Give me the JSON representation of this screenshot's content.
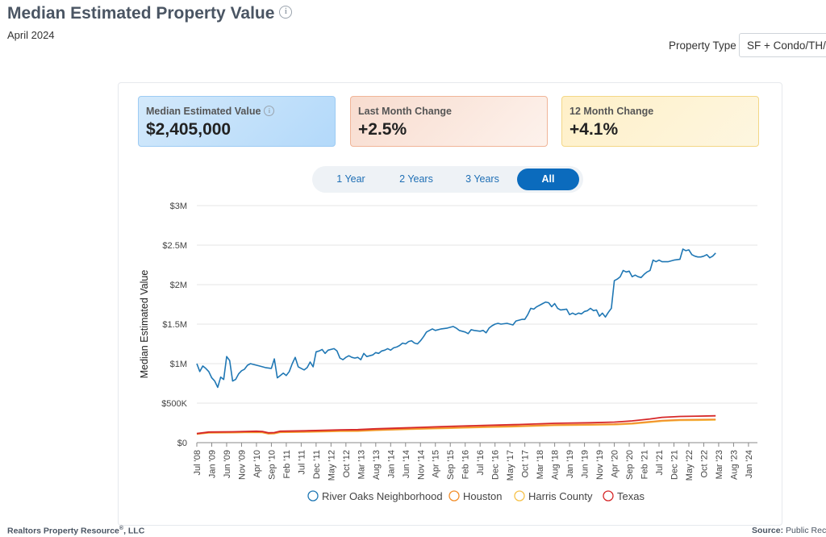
{
  "header": {
    "title": "Median Estimated Property Value",
    "date": "April 2024",
    "property_type_label": "Property Type",
    "property_type_value": "SF + Condo/TH/All"
  },
  "cards": [
    {
      "label": "Median Estimated Value",
      "value": "$2,405,000"
    },
    {
      "label": "Last Month Change",
      "value": "+2.5%"
    },
    {
      "label": "12 Month Change",
      "value": "+4.1%"
    }
  ],
  "range_buttons": [
    {
      "label": "1 Year",
      "active": false
    },
    {
      "label": "2 Years",
      "active": false
    },
    {
      "label": "3 Years",
      "active": false
    },
    {
      "label": "All",
      "active": true
    }
  ],
  "footer": {
    "left": "Realtors Property Resource",
    "left_suffix": ", LLC",
    "reg": "®",
    "right_label": "Source:",
    "right_value": "Public Records"
  },
  "colors": {
    "river_oaks": "#1f77b4",
    "houston": "#f28e2b",
    "harris": "#f6c24b",
    "texas": "#d62728",
    "accent": "#0b6bbd"
  },
  "chart_data": {
    "type": "line",
    "title": "",
    "xlabel": "",
    "ylabel": "Median Estimated Value",
    "ylim": [
      0,
      3000000
    ],
    "y_ticks": [
      {
        "value": 0,
        "label": "$0"
      },
      {
        "value": 500000,
        "label": "$500K"
      },
      {
        "value": 1000000,
        "label": "$1M"
      },
      {
        "value": 1500000,
        "label": "$1.5M"
      },
      {
        "value": 2000000,
        "label": "$2M"
      },
      {
        "value": 2500000,
        "label": "$2.5M"
      },
      {
        "value": 3000000,
        "label": "$3M"
      }
    ],
    "x_start": "2008-07",
    "x_end": "2024-04",
    "x_ticks": [
      "Jul '08",
      "Jan '09",
      "Jun '09",
      "Nov '09",
      "Apr '10",
      "Sep '10",
      "Feb '11",
      "Jul '11",
      "Dec '11",
      "May '12",
      "Oct '12",
      "Mar '13",
      "Aug '13",
      "Jan '14",
      "Jun '14",
      "Nov '14",
      "Apr '15",
      "Sep '15",
      "Feb '16",
      "Jul '16",
      "Dec '16",
      "May '17",
      "Oct '17",
      "Mar '18",
      "Aug '18",
      "Jan '19",
      "Jun '19",
      "Nov '19",
      "Apr '20",
      "Sep '20",
      "Feb '21",
      "Jul '21",
      "Dec '21",
      "May '22",
      "Oct '22",
      "Mar '23",
      "Aug '23",
      "Jan '24"
    ],
    "series": [
      {
        "name": "River Oaks Neighborhood",
        "color": "#1f77b4",
        "points": [
          [
            0,
            1000000
          ],
          [
            1,
            900000
          ],
          [
            2,
            970000
          ],
          [
            3,
            940000
          ],
          [
            4,
            900000
          ],
          [
            5,
            820000
          ],
          [
            6,
            780000
          ],
          [
            7,
            700000
          ],
          [
            8,
            830000
          ],
          [
            9,
            800000
          ],
          [
            10,
            1090000
          ],
          [
            11,
            1040000
          ],
          [
            12,
            780000
          ],
          [
            13,
            800000
          ],
          [
            14,
            870000
          ],
          [
            15,
            910000
          ],
          [
            16,
            930000
          ],
          [
            17,
            980000
          ],
          [
            18,
            1000000
          ],
          [
            19,
            990000
          ],
          [
            21,
            970000
          ],
          [
            23,
            950000
          ],
          [
            25,
            940000
          ],
          [
            26,
            1060000
          ],
          [
            27,
            820000
          ],
          [
            28,
            850000
          ],
          [
            29,
            880000
          ],
          [
            30,
            850000
          ],
          [
            31,
            900000
          ],
          [
            32,
            1000000
          ],
          [
            33,
            1080000
          ],
          [
            34,
            960000
          ],
          [
            35,
            940000
          ],
          [
            36,
            920000
          ],
          [
            37,
            950000
          ],
          [
            38,
            1020000
          ],
          [
            39,
            960000
          ],
          [
            40,
            1150000
          ],
          [
            41,
            1160000
          ],
          [
            42,
            1180000
          ],
          [
            43,
            1130000
          ],
          [
            44,
            1170000
          ],
          [
            46,
            1190000
          ],
          [
            47,
            1160000
          ],
          [
            48,
            1070000
          ],
          [
            49,
            1050000
          ],
          [
            50,
            1080000
          ],
          [
            51,
            1100000
          ],
          [
            52,
            1080000
          ],
          [
            53,
            1070000
          ],
          [
            54,
            1080000
          ],
          [
            55,
            1050000
          ],
          [
            56,
            1130000
          ],
          [
            57,
            1090000
          ],
          [
            58,
            1100000
          ],
          [
            59,
            1110000
          ],
          [
            60,
            1140000
          ],
          [
            61,
            1130000
          ],
          [
            62,
            1160000
          ],
          [
            63,
            1170000
          ],
          [
            64,
            1190000
          ],
          [
            65,
            1170000
          ],
          [
            66,
            1200000
          ],
          [
            67,
            1210000
          ],
          [
            68,
            1230000
          ],
          [
            69,
            1260000
          ],
          [
            70,
            1250000
          ],
          [
            71,
            1280000
          ],
          [
            72,
            1290000
          ],
          [
            73,
            1260000
          ],
          [
            74,
            1250000
          ],
          [
            75,
            1290000
          ],
          [
            76,
            1340000
          ],
          [
            77,
            1400000
          ],
          [
            78,
            1420000
          ],
          [
            79,
            1440000
          ],
          [
            80,
            1420000
          ],
          [
            82,
            1440000
          ],
          [
            84,
            1450000
          ],
          [
            85,
            1460000
          ],
          [
            86,
            1470000
          ],
          [
            87,
            1450000
          ],
          [
            88,
            1420000
          ],
          [
            89,
            1410000
          ],
          [
            90,
            1400000
          ],
          [
            91,
            1380000
          ],
          [
            92,
            1430000
          ],
          [
            93,
            1420000
          ],
          [
            95,
            1410000
          ],
          [
            96,
            1420000
          ],
          [
            97,
            1390000
          ],
          [
            98,
            1450000
          ],
          [
            99,
            1480000
          ],
          [
            100,
            1500000
          ],
          [
            101,
            1510000
          ],
          [
            102,
            1500000
          ],
          [
            104,
            1510000
          ],
          [
            106,
            1490000
          ],
          [
            107,
            1540000
          ],
          [
            108,
            1550000
          ],
          [
            109,
            1560000
          ],
          [
            110,
            1560000
          ],
          [
            111,
            1620000
          ],
          [
            112,
            1700000
          ],
          [
            113,
            1690000
          ],
          [
            114,
            1720000
          ],
          [
            115,
            1740000
          ],
          [
            116,
            1760000
          ],
          [
            117,
            1780000
          ],
          [
            118,
            1770000
          ],
          [
            119,
            1720000
          ],
          [
            120,
            1760000
          ],
          [
            121,
            1700000
          ],
          [
            122,
            1680000
          ],
          [
            124,
            1690000
          ],
          [
            125,
            1620000
          ],
          [
            126,
            1640000
          ],
          [
            127,
            1620000
          ],
          [
            128,
            1640000
          ],
          [
            129,
            1630000
          ],
          [
            130,
            1660000
          ],
          [
            131,
            1670000
          ],
          [
            132,
            1700000
          ],
          [
            133,
            1670000
          ],
          [
            134,
            1680000
          ],
          [
            135,
            1600000
          ],
          [
            136,
            1640000
          ],
          [
            137,
            1590000
          ],
          [
            138,
            1650000
          ],
          [
            139,
            1700000
          ],
          [
            140,
            2050000
          ],
          [
            141,
            2070000
          ],
          [
            142,
            2100000
          ],
          [
            143,
            2180000
          ],
          [
            144,
            2160000
          ],
          [
            145,
            2170000
          ],
          [
            146,
            2100000
          ],
          [
            147,
            2120000
          ],
          [
            148,
            2100000
          ],
          [
            149,
            2090000
          ],
          [
            150,
            2130000
          ],
          [
            151,
            2160000
          ],
          [
            152,
            2180000
          ],
          [
            153,
            2310000
          ],
          [
            154,
            2290000
          ],
          [
            155,
            2310000
          ],
          [
            156,
            2290000
          ],
          [
            158,
            2290000
          ],
          [
            160,
            2310000
          ],
          [
            162,
            2320000
          ],
          [
            163,
            2450000
          ],
          [
            164,
            2430000
          ],
          [
            165,
            2440000
          ],
          [
            166,
            2380000
          ],
          [
            167,
            2360000
          ],
          [
            168,
            2350000
          ],
          [
            169,
            2350000
          ],
          [
            170,
            2360000
          ],
          [
            171,
            2380000
          ],
          [
            172,
            2340000
          ],
          [
            173,
            2360000
          ],
          [
            174,
            2400000
          ]
        ]
      },
      {
        "name": "Houston",
        "color": "#f28e2b",
        "points": [
          [
            0,
            110000
          ],
          [
            4,
            128000
          ],
          [
            12,
            130000
          ],
          [
            16,
            132000
          ],
          [
            20,
            135000
          ],
          [
            22,
            132000
          ],
          [
            24,
            115000
          ],
          [
            26,
            118000
          ],
          [
            28,
            135000
          ],
          [
            36,
            138000
          ],
          [
            44,
            145000
          ],
          [
            48,
            148000
          ],
          [
            54,
            150000
          ],
          [
            60,
            160000
          ],
          [
            72,
            175000
          ],
          [
            84,
            188000
          ],
          [
            96,
            200000
          ],
          [
            108,
            210000
          ],
          [
            120,
            225000
          ],
          [
            132,
            230000
          ],
          [
            140,
            235000
          ],
          [
            146,
            245000
          ],
          [
            152,
            265000
          ],
          [
            156,
            280000
          ],
          [
            162,
            290000
          ],
          [
            168,
            292000
          ],
          [
            174,
            295000
          ]
        ]
      },
      {
        "name": "Harris County",
        "color": "#f6c24b",
        "points": [
          [
            0,
            108000
          ],
          [
            4,
            124000
          ],
          [
            12,
            127000
          ],
          [
            16,
            129000
          ],
          [
            20,
            131000
          ],
          [
            22,
            128000
          ],
          [
            24,
            112000
          ],
          [
            26,
            114000
          ],
          [
            28,
            131000
          ],
          [
            36,
            134000
          ],
          [
            44,
            141000
          ],
          [
            48,
            144000
          ],
          [
            54,
            146000
          ],
          [
            60,
            156000
          ],
          [
            72,
            170000
          ],
          [
            84,
            182000
          ],
          [
            96,
            194000
          ],
          [
            108,
            204000
          ],
          [
            120,
            218000
          ],
          [
            132,
            223000
          ],
          [
            140,
            228000
          ],
          [
            146,
            238000
          ],
          [
            152,
            258000
          ],
          [
            156,
            272000
          ],
          [
            162,
            282000
          ],
          [
            168,
            284000
          ],
          [
            174,
            287000
          ]
        ]
      },
      {
        "name": "Texas",
        "color": "#d62728",
        "points": [
          [
            0,
            115000
          ],
          [
            4,
            135000
          ],
          [
            12,
            138000
          ],
          [
            16,
            142000
          ],
          [
            20,
            145000
          ],
          [
            22,
            142000
          ],
          [
            24,
            125000
          ],
          [
            26,
            128000
          ],
          [
            28,
            145000
          ],
          [
            36,
            150000
          ],
          [
            44,
            158000
          ],
          [
            48,
            162000
          ],
          [
            54,
            165000
          ],
          [
            60,
            176000
          ],
          [
            72,
            190000
          ],
          [
            84,
            205000
          ],
          [
            96,
            218000
          ],
          [
            108,
            230000
          ],
          [
            120,
            245000
          ],
          [
            132,
            252000
          ],
          [
            140,
            260000
          ],
          [
            146,
            275000
          ],
          [
            152,
            300000
          ],
          [
            156,
            320000
          ],
          [
            162,
            332000
          ],
          [
            168,
            336000
          ],
          [
            174,
            340000
          ]
        ]
      }
    ],
    "legend": [
      "River Oaks Neighborhood",
      "Houston",
      "Harris County",
      "Texas"
    ],
    "legend_position": "bottom",
    "grid": true
  }
}
